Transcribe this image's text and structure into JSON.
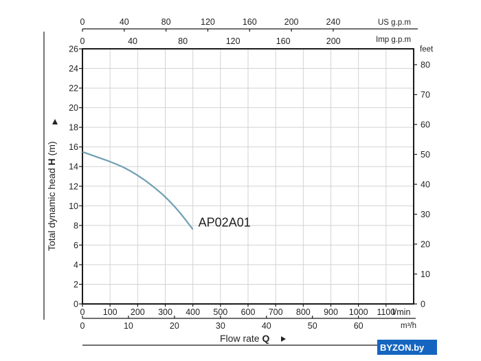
{
  "chart_data": {
    "type": "line",
    "title": "",
    "xlabel": "Flow rate Q",
    "ylabel": "Total dynamic head H (m)",
    "xlim": [
      0,
      1200
    ],
    "ylim": [
      0,
      26
    ],
    "grid": true,
    "x_ticks": [
      0,
      100,
      200,
      300,
      400,
      500,
      600,
      700,
      800,
      900,
      1000,
      1100
    ],
    "y_ticks": [
      0,
      2,
      4,
      6,
      8,
      10,
      12,
      14,
      16,
      18,
      20,
      22,
      24,
      26
    ],
    "x_unit_label": "l/min",
    "secondary_axes": {
      "m3h": {
        "label": "m³/h",
        "ticks": [
          0,
          10,
          20,
          30,
          40,
          50,
          60
        ]
      },
      "us_gpm": {
        "label": "US g.p.m",
        "ticks": [
          0,
          40,
          80,
          120,
          160,
          200,
          240
        ]
      },
      "imp_gpm": {
        "label": "Imp g.p.m",
        "ticks": [
          0,
          40,
          80,
          120,
          160,
          200
        ]
      },
      "feet": {
        "label": "feet",
        "ticks": [
          0,
          10,
          20,
          30,
          40,
          50,
          60,
          70,
          80
        ]
      }
    },
    "series": [
      {
        "name": "AP02A01",
        "color": "#6f9fb2",
        "x": [
          0,
          50,
          100,
          150,
          200,
          250,
          300,
          350,
          400
        ],
        "y": [
          15.5,
          15.0,
          14.5,
          13.9,
          13.1,
          12.1,
          10.9,
          9.4,
          7.6
        ]
      }
    ]
  },
  "watermark": "BYZON.by"
}
